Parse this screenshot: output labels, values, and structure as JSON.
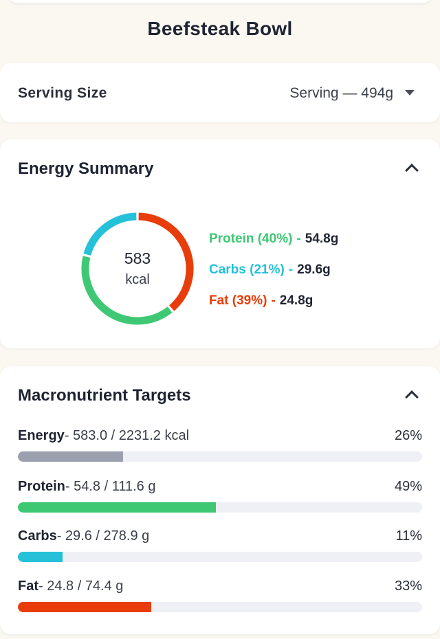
{
  "title": "Beefsteak Bowl",
  "serving": {
    "label": "Serving Size",
    "value": "Serving — 494g",
    "icon": "chevron-down-icon"
  },
  "energy_summary": {
    "title": "Energy Summary",
    "kcal": "583",
    "unit": "kcal",
    "segments": [
      {
        "name": "Protein",
        "label": "Protein (40%)",
        "grams": "54.8g",
        "color": "#3ec874",
        "fraction": 0.4
      },
      {
        "name": "Carbs",
        "label": "Carbs (21%)",
        "grams": "29.6g",
        "color": "#25c1d9",
        "fraction": 0.21
      },
      {
        "name": "Fat",
        "label": "Fat (39%)",
        "grams": "24.8g",
        "color": "#e83d0a",
        "fraction": 0.39
      }
    ]
  },
  "macro_targets": {
    "title": "Macronutrient Targets",
    "rows": [
      {
        "name": "Energy",
        "amount": "- 583.0 / 2231.2 kcal",
        "pct": "26%",
        "fraction": 0.26,
        "color": "#9aa0ad"
      },
      {
        "name": "Protein",
        "amount": "- 54.8 / 111.6 g",
        "pct": "49%",
        "fraction": 0.49,
        "color": "#3ec874"
      },
      {
        "name": "Carbs",
        "amount": "- 29.6 / 278.9 g",
        "pct": "11%",
        "fraction": 0.11,
        "color": "#25c1d9"
      },
      {
        "name": "Fat",
        "amount": "- 24.8 / 74.4 g",
        "pct": "33%",
        "fraction": 0.33,
        "color": "#e83d0a"
      }
    ]
  }
}
